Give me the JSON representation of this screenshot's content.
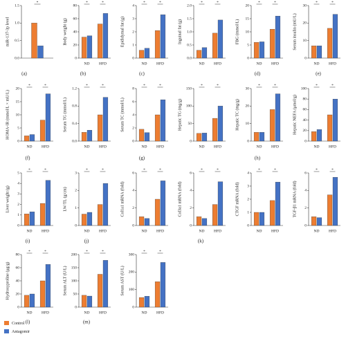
{
  "chart_data": [
    {
      "type": "bar",
      "ylabel": "miR-137-3p level",
      "categories": [
        null
      ],
      "series": [
        {
          "name": "Control",
          "color": "#ed7d31",
          "values": [
            1.0
          ]
        },
        {
          "name": "Antagomir",
          "color": "#4472c4",
          "values": [
            0.35
          ]
        }
      ],
      "ylim": [
        0,
        1.5
      ],
      "yticks": [
        {
          "value": 0,
          "label": "0.0"
        },
        {
          "value": 0.5,
          "label": "0.5"
        },
        {
          "value": 1,
          "label": "1.0"
        },
        {
          "value": 1.5,
          "label": "1.5"
        }
      ],
      "annotations": [
        "*"
      ]
    },
    {
      "type": "bar",
      "ylabel": "Body weight (g)",
      "categories": [
        "ND",
        "HFD"
      ],
      "series": [
        {
          "name": "Control",
          "color": "#ed7d31",
          "values": [
            32,
            52
          ]
        },
        {
          "name": "Antagomir",
          "color": "#4472c4",
          "values": [
            34,
            68
          ]
        }
      ],
      "ylim": [
        0,
        80
      ],
      "yticks": [
        0,
        20,
        40,
        60,
        80
      ],
      "annotations": [
        "*",
        "*"
      ]
    },
    {
      "type": "bar",
      "ylabel": "Epididymal fat (g)",
      "categories": [
        "ND",
        "HFD"
      ],
      "series": [
        {
          "name": "Control",
          "color": "#ed7d31",
          "values": [
            0.6,
            2.1
          ]
        },
        {
          "name": "Antagomir",
          "color": "#4472c4",
          "values": [
            0.75,
            3.3
          ]
        }
      ],
      "ylim": [
        0,
        4
      ],
      "yticks": [
        0,
        1,
        2,
        3,
        4
      ],
      "annotations": [
        "*",
        "*"
      ]
    },
    {
      "type": "bar",
      "ylabel": "Inguinal fat (g)",
      "categories": [
        "ND",
        "HFD"
      ],
      "series": [
        {
          "name": "Control",
          "color": "#ed7d31",
          "values": [
            0.3,
            0.95
          ]
        },
        {
          "name": "Antagomir",
          "color": "#4472c4",
          "values": [
            0.4,
            1.45
          ]
        }
      ],
      "ylim": [
        0,
        2
      ],
      "yticks": [
        {
          "value": 0,
          "label": "0.0"
        },
        {
          "value": 0.5,
          "label": "0.5"
        },
        {
          "value": 1,
          "label": "1.0"
        },
        {
          "value": 1.5,
          "label": "1.5"
        },
        {
          "value": 2,
          "label": "2.0"
        }
      ],
      "annotations": [
        "*",
        "*"
      ]
    },
    {
      "type": "bar",
      "ylabel": "FBG (mmol/L)",
      "categories": [
        "ND",
        "HFD"
      ],
      "series": [
        {
          "name": "Control",
          "color": "#ed7d31",
          "values": [
            6,
            11
          ]
        },
        {
          "name": "Antagomir",
          "color": "#4472c4",
          "values": [
            6.2,
            16
          ]
        }
      ],
      "ylim": [
        0,
        20
      ],
      "yticks": [
        0,
        5,
        10,
        15,
        20
      ],
      "annotations": [
        "*",
        "*"
      ]
    },
    {
      "type": "bar",
      "ylabel": "Serum insulin (mU/L)",
      "categories": [
        "ND",
        "HFD"
      ],
      "series": [
        {
          "name": "Control",
          "color": "#ed7d31",
          "values": [
            7,
            17
          ]
        },
        {
          "name": "Antagomir",
          "color": "#4472c4",
          "values": [
            7,
            25
          ]
        }
      ],
      "ylim": [
        0,
        30
      ],
      "yticks": [
        0,
        10,
        20,
        30
      ],
      "annotations": [
        "*",
        "*"
      ]
    },
    {
      "type": "bar",
      "ylabel": "HOMA-IR (mmol/L × mU/L)",
      "categories": [
        "ND",
        "HFD"
      ],
      "series": [
        {
          "name": "Control",
          "color": "#ed7d31",
          "values": [
            2,
            8
          ]
        },
        {
          "name": "Antagomir",
          "color": "#4472c4",
          "values": [
            2.5,
            18
          ]
        }
      ],
      "ylim": [
        0,
        20
      ],
      "yticks": [
        0,
        5,
        10,
        15,
        20
      ],
      "annotations": [
        "*",
        "*"
      ]
    },
    {
      "type": "bar",
      "ylabel": "Serum TG (mmol/L)",
      "categories": [
        "ND",
        "HFD"
      ],
      "series": [
        {
          "name": "Control",
          "color": "#ed7d31",
          "values": [
            0.2,
            0.6
          ]
        },
        {
          "name": "Antagomir",
          "color": "#4472c4",
          "values": [
            0.25,
            1.0
          ]
        }
      ],
      "ylim": [
        0,
        1.2
      ],
      "yticks": [
        {
          "value": 0,
          "label": "0.0"
        },
        {
          "value": 0.4,
          "label": "0.4"
        },
        {
          "value": 0.8,
          "label": "0.8"
        },
        {
          "value": 1.2,
          "label": "1.2"
        }
      ],
      "annotations": [
        "*",
        "*"
      ]
    },
    {
      "type": "bar",
      "ylabel": "Serum TC (mmol/L)",
      "categories": [
        "ND",
        "HFD"
      ],
      "series": [
        {
          "name": "Control",
          "color": "#ed7d31",
          "values": [
            1.8,
            4
          ]
        },
        {
          "name": "Antagomir",
          "color": "#4472c4",
          "values": [
            1.3,
            6.3
          ]
        }
      ],
      "ylim": [
        0,
        8
      ],
      "yticks": [
        0,
        2,
        4,
        6,
        8
      ],
      "annotations": [
        "*",
        "*"
      ]
    },
    {
      "type": "bar",
      "ylabel": "Hepatic TG (mg/g)",
      "categories": [
        "ND",
        "HFD"
      ],
      "series": [
        {
          "name": "Control",
          "color": "#ed7d31",
          "values": [
            22,
            65
          ]
        },
        {
          "name": "Antagomir",
          "color": "#4472c4",
          "values": [
            23,
            100
          ]
        }
      ],
      "ylim": [
        0,
        150
      ],
      "yticks": [
        0,
        50,
        100,
        150
      ],
      "annotations": [
        "*",
        "*"
      ]
    },
    {
      "type": "bar",
      "ylabel": "Hepatic TC (mg/g)",
      "categories": [
        "ND",
        "HFD"
      ],
      "series": [
        {
          "name": "Control",
          "color": "#ed7d31",
          "values": [
            5,
            18
          ]
        },
        {
          "name": "Antagomir",
          "color": "#4472c4",
          "values": [
            5,
            27
          ]
        }
      ],
      "ylim": [
        0,
        30
      ],
      "yticks": [
        0,
        10,
        20,
        30
      ],
      "annotations": [
        "*",
        "*"
      ]
    },
    {
      "type": "bar",
      "ylabel": "Hepatic NEFA (μmol/g)",
      "categories": [
        "ND",
        "HFD"
      ],
      "series": [
        {
          "name": "Control",
          "color": "#ed7d31",
          "values": [
            18,
            50
          ]
        },
        {
          "name": "Antagomir",
          "color": "#4472c4",
          "values": [
            22,
            80
          ]
        }
      ],
      "ylim": [
        0,
        100
      ],
      "yticks": [
        0,
        20,
        40,
        60,
        80,
        100
      ],
      "annotations": [
        "*",
        "*"
      ]
    },
    {
      "type": "bar",
      "ylabel": "Liver weight (g)",
      "categories": [
        "ND",
        "HFD"
      ],
      "series": [
        {
          "name": "Control",
          "color": "#ed7d31",
          "values": [
            1.1,
            2.1
          ]
        },
        {
          "name": "Antagomir",
          "color": "#4472c4",
          "values": [
            1.3,
            4.3
          ]
        }
      ],
      "ylim": [
        0,
        5
      ],
      "yticks": [
        0,
        1,
        2,
        3,
        4,
        5
      ],
      "annotations": [
        "*",
        "*"
      ]
    },
    {
      "type": "bar",
      "ylabel": "LW/TL (g/cm)",
      "categories": [
        "ND",
        "HFD"
      ],
      "series": [
        {
          "name": "Control",
          "color": "#ed7d31",
          "values": [
            0.65,
            1.2
          ]
        },
        {
          "name": "Antagomir",
          "color": "#4472c4",
          "values": [
            0.75,
            2.4
          ]
        }
      ],
      "ylim": [
        0,
        3
      ],
      "yticks": [
        0,
        1,
        2,
        3
      ],
      "annotations": [
        "*",
        "*"
      ]
    },
    {
      "type": "bar",
      "ylabel": "Col1a1 mRNA (fold)",
      "categories": [
        "ND",
        "HFD"
      ],
      "series": [
        {
          "name": "Control",
          "color": "#ed7d31",
          "values": [
            1,
            3
          ]
        },
        {
          "name": "Antagomir",
          "color": "#4472c4",
          "values": [
            0.8,
            5.1
          ]
        }
      ],
      "ylim": [
        0,
        6
      ],
      "yticks": [
        0,
        2,
        4,
        6
      ],
      "annotations": [
        "*",
        "*"
      ]
    },
    {
      "type": "bar",
      "ylabel": "Col3a1 mRNA (fold)",
      "categories": [
        "ND",
        "HFD"
      ],
      "series": [
        {
          "name": "Control",
          "color": "#ed7d31",
          "values": [
            1,
            2.4
          ]
        },
        {
          "name": "Antagomir",
          "color": "#4472c4",
          "values": [
            0.8,
            5
          ]
        }
      ],
      "ylim": [
        0,
        6
      ],
      "yticks": [
        0,
        2,
        4,
        6
      ],
      "annotations": [
        "*",
        "*"
      ]
    },
    {
      "type": "bar",
      "ylabel": "CTGF mRNA (fold)",
      "categories": [
        "ND",
        "HFD"
      ],
      "series": [
        {
          "name": "Control",
          "color": "#ed7d31",
          "values": [
            1,
            1.9
          ]
        },
        {
          "name": "Antagomir",
          "color": "#4472c4",
          "values": [
            1,
            3.3
          ]
        }
      ],
      "ylim": [
        0,
        4
      ],
      "yticks": [
        0,
        1,
        2,
        3,
        4
      ],
      "annotations": [
        "*",
        "*"
      ]
    },
    {
      "type": "bar",
      "ylabel": "TGF-β1 mRNA (fold)",
      "categories": [
        "ND",
        "HFD"
      ],
      "series": [
        {
          "name": "Control",
          "color": "#ed7d31",
          "values": [
            1,
            3.5
          ]
        },
        {
          "name": "Antagomir",
          "color": "#4472c4",
          "values": [
            0.9,
            5.5
          ]
        }
      ],
      "ylim": [
        0,
        6
      ],
      "yticks": [
        0,
        2,
        4,
        6
      ],
      "annotations": [
        "*",
        "*"
      ]
    },
    {
      "type": "bar",
      "ylabel": "Hydroxyproline (μg/g)",
      "categories": [
        "ND",
        "HFD"
      ],
      "series": [
        {
          "name": "Control",
          "color": "#ed7d31",
          "values": [
            18,
            40
          ]
        },
        {
          "name": "Antagomir",
          "color": "#4472c4",
          "values": [
            20,
            65
          ]
        }
      ],
      "ylim": [
        0,
        80
      ],
      "yticks": [
        0,
        20,
        40,
        60,
        80
      ],
      "annotations": [
        "*",
        "*"
      ]
    },
    {
      "type": "bar",
      "ylabel": "Serum ALT (U/L)",
      "categories": [
        "ND",
        "HFD"
      ],
      "series": [
        {
          "name": "Control",
          "color": "#ed7d31",
          "values": [
            45,
            125
          ]
        },
        {
          "name": "Antagomir",
          "color": "#4472c4",
          "values": [
            42,
            178
          ]
        }
      ],
      "ylim": [
        0,
        200
      ],
      "yticks": [
        0,
        50,
        100,
        150,
        200
      ],
      "annotations": [
        "*",
        "*"
      ]
    },
    {
      "type": "bar",
      "ylabel": "Serum AST (U/L)",
      "categories": [
        "ND",
        "HFD"
      ],
      "series": [
        {
          "name": "Control",
          "color": "#ed7d31",
          "values": [
            55,
            145
          ]
        },
        {
          "name": "Antagomir",
          "color": "#4472c4",
          "values": [
            62,
            255
          ]
        }
      ],
      "ylim": [
        0,
        300
      ],
      "yticks": [
        0,
        100,
        200,
        300
      ],
      "annotations": [
        "*",
        "*"
      ]
    }
  ],
  "panel_labels": [
    "(a)",
    "(b)",
    "(c)",
    "(d)",
    "(e)",
    "(f)",
    "(g)",
    "(h)",
    "(i)",
    "(j)",
    "(k)",
    "(l)",
    "(m)"
  ]
}
